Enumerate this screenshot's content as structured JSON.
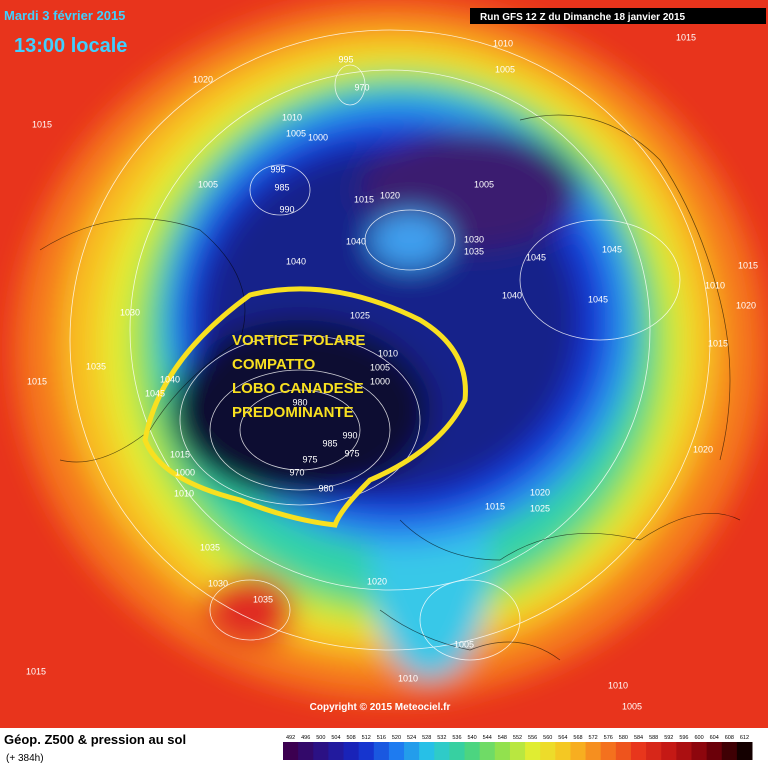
{
  "header": {
    "date": "Mardi 3 février 2015",
    "time": "13:00 locale",
    "run": "Run GFS 12 Z du Dimanche 18 janvier 2015"
  },
  "annotation": {
    "lines": [
      "VORTICE POLARE",
      "COMPATTO",
      "LOBO CANADESE",
      "PREDOMINANTE"
    ]
  },
  "pressure_labels": [
    995,
    970,
    1020,
    1010,
    1005,
    1000,
    1015,
    1005,
    995,
    985,
    990,
    1015,
    1020,
    1040,
    1040,
    1005,
    1030,
    1035,
    1045,
    1040,
    1045,
    1045,
    1015,
    1010,
    1020,
    1015,
    1020,
    1025,
    1010,
    1005,
    1000,
    980,
    985,
    990,
    975,
    975,
    970,
    980,
    1015,
    1000,
    1010,
    1040,
    1045,
    1035,
    1030,
    1015,
    1035,
    1030,
    1035,
    1015,
    1020,
    1005,
    1010,
    1010,
    1005,
    1015,
    1020,
    1025,
    1010,
    1005,
    1015
  ],
  "copyright": "Copyright © 2015 Meteociel.fr",
  "footer": {
    "title": "Géop. Z500 & pression au sol",
    "lead": "(+ 384h)"
  },
  "colorbar": {
    "ticks": [
      492,
      496,
      500,
      504,
      508,
      512,
      516,
      520,
      524,
      528,
      532,
      536,
      540,
      544,
      548,
      552,
      556,
      560,
      564,
      568,
      572,
      576,
      580,
      584,
      588,
      592,
      596,
      600,
      604,
      608,
      612
    ]
  }
}
